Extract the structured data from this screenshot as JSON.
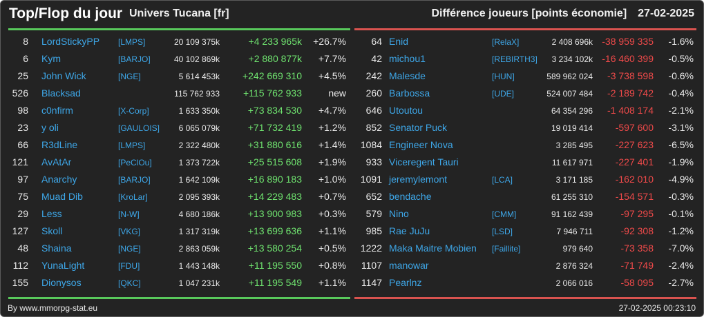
{
  "header": {
    "title": "Top/Flop du jour",
    "universe": "Univers Tucana [fr]",
    "metric": "Différence joueurs [points économie]",
    "date": "27-02-2025"
  },
  "footer": {
    "credit": "By www.mmorpg-stat.eu",
    "timestamp": "27-02-2025 00:23:10"
  },
  "colors": {
    "background": "#232323",
    "name": "#3ea7e8",
    "positive": "#6fe36f",
    "negative": "#f04a4a",
    "top_divider": "#58c95b",
    "flop_divider": "#d9534f"
  },
  "top": [
    {
      "rank": "8",
      "name": "LordStickyPP",
      "alliance": "[LMPS]",
      "points": "20 109 375k",
      "diff": "+4 233 965k",
      "pct": "+26.7%"
    },
    {
      "rank": "6",
      "name": "Kym",
      "alliance": "[BARJO]",
      "points": "40 102 869k",
      "diff": "+2 880 877k",
      "pct": "+7.7%"
    },
    {
      "rank": "25",
      "name": "John Wick",
      "alliance": "[NGE]",
      "points": "5 614 453k",
      "diff": "+242 669 310",
      "pct": "+4.5%"
    },
    {
      "rank": "526",
      "name": "Blacksad",
      "alliance": "",
      "points": "115 762 933",
      "diff": "+115 762 933",
      "pct": "new"
    },
    {
      "rank": "98",
      "name": "c0nfirm",
      "alliance": "[X-Corp]",
      "points": "1 633 350k",
      "diff": "+73 834 530",
      "pct": "+4.7%"
    },
    {
      "rank": "23",
      "name": "y oli",
      "alliance": "[GAULOIS]",
      "points": "6 065 079k",
      "diff": "+71 732 419",
      "pct": "+1.2%"
    },
    {
      "rank": "66",
      "name": "R3dLine",
      "alliance": "[LMPS]",
      "points": "2 322 480k",
      "diff": "+31 880 616",
      "pct": "+1.4%"
    },
    {
      "rank": "121",
      "name": "AvAtAr",
      "alliance": "[PeClOu]",
      "points": "1 373 722k",
      "diff": "+25 515 608",
      "pct": "+1.9%"
    },
    {
      "rank": "97",
      "name": "Anarchy",
      "alliance": "[BARJO]",
      "points": "1 642 109k",
      "diff": "+16 890 183",
      "pct": "+1.0%"
    },
    {
      "rank": "75",
      "name": "Muad Dib",
      "alliance": "[KroLar]",
      "points": "2 095 393k",
      "diff": "+14 229 483",
      "pct": "+0.7%"
    },
    {
      "rank": "29",
      "name": "Less",
      "alliance": "[N-W]",
      "points": "4 680 186k",
      "diff": "+13 900 983",
      "pct": "+0.3%"
    },
    {
      "rank": "127",
      "name": "Skoll",
      "alliance": "[VKG]",
      "points": "1 317 319k",
      "diff": "+13 699 636",
      "pct": "+1.1%"
    },
    {
      "rank": "48",
      "name": "Shaina",
      "alliance": "[NGE]",
      "points": "2 863 059k",
      "diff": "+13 580 254",
      "pct": "+0.5%"
    },
    {
      "rank": "112",
      "name": "YunaLight",
      "alliance": "[FDU]",
      "points": "1 443 148k",
      "diff": "+11 195 550",
      "pct": "+0.8%"
    },
    {
      "rank": "155",
      "name": "Dionysos",
      "alliance": "[QKC]",
      "points": "1 047 231k",
      "diff": "+11 195 549",
      "pct": "+1.1%"
    }
  ],
  "flop": [
    {
      "rank": "64",
      "name": "Enid",
      "alliance": "[RelaX]",
      "points": "2 408 696k",
      "diff": "-38 959 335",
      "pct": "-1.6%"
    },
    {
      "rank": "42",
      "name": "michou1",
      "alliance": "[REBIRTH3]",
      "points": "3 234 102k",
      "diff": "-16 460 399",
      "pct": "-0.5%"
    },
    {
      "rank": "242",
      "name": "Malesde",
      "alliance": "[HUN]",
      "points": "589 962 024",
      "diff": "-3 738 598",
      "pct": "-0.6%"
    },
    {
      "rank": "260",
      "name": "Barbossa",
      "alliance": "[UDE]",
      "points": "524 007 484",
      "diff": "-2 189 742",
      "pct": "-0.4%"
    },
    {
      "rank": "646",
      "name": "Utoutou",
      "alliance": "",
      "points": "64 354 296",
      "diff": "-1 408 174",
      "pct": "-2.1%"
    },
    {
      "rank": "852",
      "name": "Senator Puck",
      "alliance": "",
      "points": "19 019 414",
      "diff": "-597 600",
      "pct": "-3.1%"
    },
    {
      "rank": "1084",
      "name": "Engineer Nova",
      "alliance": "",
      "points": "3 285 495",
      "diff": "-227 623",
      "pct": "-6.5%"
    },
    {
      "rank": "933",
      "name": "Viceregent Tauri",
      "alliance": "",
      "points": "11 617 971",
      "diff": "-227 401",
      "pct": "-1.9%"
    },
    {
      "rank": "1091",
      "name": "jeremylemont",
      "alliance": "[LCA]",
      "points": "3 171 185",
      "diff": "-162 010",
      "pct": "-4.9%"
    },
    {
      "rank": "652",
      "name": "bendache",
      "alliance": "",
      "points": "61 255 310",
      "diff": "-154 571",
      "pct": "-0.3%"
    },
    {
      "rank": "579",
      "name": "Nino",
      "alliance": "[CMM]",
      "points": "91 162 439",
      "diff": "-97 295",
      "pct": "-0.1%"
    },
    {
      "rank": "985",
      "name": "Rae JuJu",
      "alliance": "[LSD]",
      "points": "7 946 711",
      "diff": "-92 308",
      "pct": "-1.2%"
    },
    {
      "rank": "1222",
      "name": "Maka Maitre Mobien",
      "alliance": "[Faillite]",
      "points": "979 640",
      "diff": "-73 358",
      "pct": "-7.0%"
    },
    {
      "rank": "1107",
      "name": "manowar",
      "alliance": "",
      "points": "2 876 324",
      "diff": "-71 749",
      "pct": "-2.4%"
    },
    {
      "rank": "1147",
      "name": "Pearlnz",
      "alliance": "",
      "points": "2 066 016",
      "diff": "-58 095",
      "pct": "-2.7%"
    }
  ]
}
